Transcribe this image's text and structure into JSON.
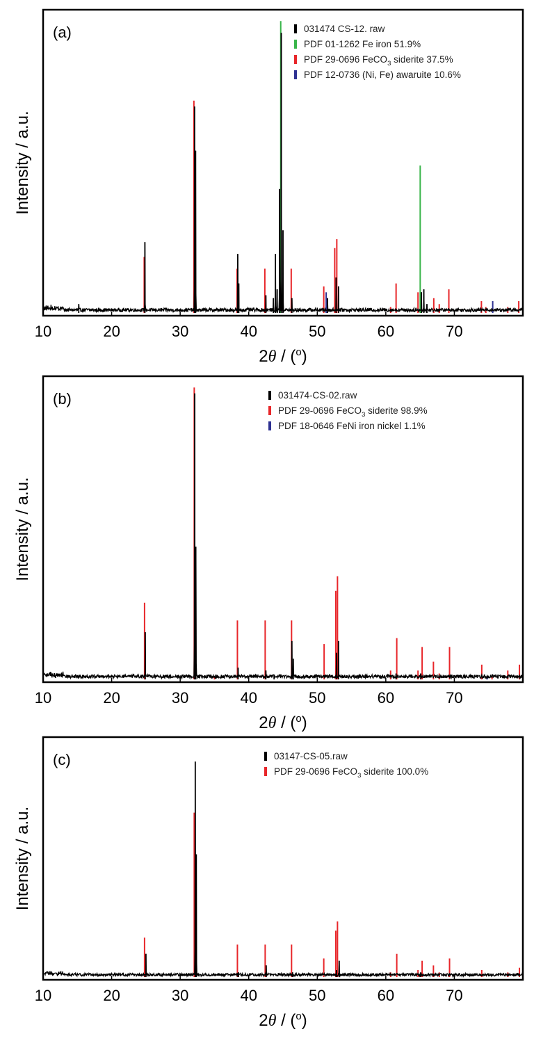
{
  "colors": {
    "raw": "#000000",
    "iron": "#39b54a",
    "siderite": "#e8262a",
    "nickel": "#2e3192"
  },
  "axis": {
    "xlabel_prefix": "2",
    "xlabel_theta": "θ",
    "xlabel_suffix": " / (",
    "xlabel_deg": "o",
    "xlabel_close": ")",
    "ylabel": "Intensity / a.u."
  },
  "chart_data": [
    {
      "type": "line",
      "panel_label": "(a)",
      "xlabel": "2θ / (o)",
      "ylabel": "Intensity / a.u.",
      "xlim": [
        10,
        80
      ],
      "ylim": [
        0,
        1
      ],
      "xticks": [
        10,
        20,
        30,
        40,
        50,
        60,
        70
      ],
      "legend_position": "top-right",
      "legend": [
        {
          "key": "raw",
          "parts": [
            "031474 CS-12. raw"
          ]
        },
        {
          "key": "iron",
          "parts": [
            "PDF 01-1262 Fe iron 51.9%"
          ]
        },
        {
          "key": "siderite",
          "parts": [
            "PDF 29-0696 FeCO",
            "3",
            " siderite 37.5%"
          ]
        },
        {
          "key": "nickel",
          "parts": [
            "PDF 12-0736 (Ni, Fe) awaruite 10.6%"
          ]
        }
      ],
      "peaks": [
        {
          "x": 15.2,
          "y": 0.03
        },
        {
          "x": 24.85,
          "y": 0.24
        },
        {
          "x": 32.1,
          "y": 0.7
        },
        {
          "x": 32.25,
          "y": 0.55
        },
        {
          "x": 38.4,
          "y": 0.2
        },
        {
          "x": 38.55,
          "y": 0.1
        },
        {
          "x": 42.5,
          "y": 0.06
        },
        {
          "x": 43.6,
          "y": 0.05
        },
        {
          "x": 43.9,
          "y": 0.2
        },
        {
          "x": 44.15,
          "y": 0.08
        },
        {
          "x": 44.5,
          "y": 0.42
        },
        {
          "x": 44.75,
          "y": 0.95
        },
        {
          "x": 45.0,
          "y": 0.28
        },
        {
          "x": 46.3,
          "y": 0.05
        },
        {
          "x": 51.5,
          "y": 0.05
        },
        {
          "x": 52.75,
          "y": 0.12
        },
        {
          "x": 53.1,
          "y": 0.09
        },
        {
          "x": 65.2,
          "y": 0.07
        },
        {
          "x": 65.55,
          "y": 0.08
        },
        {
          "x": 66.0,
          "y": 0.03
        }
      ],
      "refs": [
        {
          "series": "iron",
          "x": 44.67,
          "y": 0.99
        },
        {
          "series": "iron",
          "x": 65.02,
          "y": 0.5
        },
        {
          "series": "siderite",
          "x": 24.75,
          "y": 0.19
        },
        {
          "series": "siderite",
          "x": 32.0,
          "y": 0.72
        },
        {
          "series": "siderite",
          "x": 38.3,
          "y": 0.15
        },
        {
          "series": "siderite",
          "x": 42.35,
          "y": 0.15
        },
        {
          "series": "siderite",
          "x": 46.2,
          "y": 0.15
        },
        {
          "series": "siderite",
          "x": 50.95,
          "y": 0.09
        },
        {
          "series": "siderite",
          "x": 52.55,
          "y": 0.22
        },
        {
          "series": "siderite",
          "x": 52.85,
          "y": 0.25
        },
        {
          "series": "siderite",
          "x": 60.7,
          "y": 0.02
        },
        {
          "series": "siderite",
          "x": 61.5,
          "y": 0.1
        },
        {
          "series": "siderite",
          "x": 64.7,
          "y": 0.07
        },
        {
          "series": "siderite",
          "x": 67.0,
          "y": 0.05
        },
        {
          "series": "siderite",
          "x": 67.8,
          "y": 0.03
        },
        {
          "series": "siderite",
          "x": 69.2,
          "y": 0.08
        },
        {
          "series": "siderite",
          "x": 73.95,
          "y": 0.04
        },
        {
          "series": "siderite",
          "x": 74.6,
          "y": 0.02
        },
        {
          "series": "siderite",
          "x": 77.8,
          "y": 0.02
        },
        {
          "series": "siderite",
          "x": 79.4,
          "y": 0.04
        },
        {
          "series": "nickel",
          "x": 51.3,
          "y": 0.07
        },
        {
          "series": "nickel",
          "x": 75.6,
          "y": 0.04
        }
      ]
    },
    {
      "type": "line",
      "panel_label": "(b)",
      "xlabel": "2θ / (o)",
      "ylabel": "Intensity / a.u.",
      "xlim": [
        10,
        80
      ],
      "ylim": [
        0,
        1
      ],
      "xticks": [
        10,
        20,
        30,
        40,
        50,
        60,
        70
      ],
      "legend_position": "top-right",
      "legend": [
        {
          "key": "raw",
          "parts": [
            "031474-CS-02.raw"
          ]
        },
        {
          "key": "siderite",
          "parts": [
            "PDF 29-0696 FeCO",
            "3",
            " siderite 98.9%"
          ]
        },
        {
          "key": "nickel",
          "parts": [
            "PDF 18-0646 FeNi iron nickel 1.1%"
          ]
        }
      ],
      "peaks": [
        {
          "x": 24.9,
          "y": 0.16
        },
        {
          "x": 32.12,
          "y": 0.97
        },
        {
          "x": 32.28,
          "y": 0.45
        },
        {
          "x": 38.45,
          "y": 0.04
        },
        {
          "x": 42.5,
          "y": 0.03
        },
        {
          "x": 43.7,
          "y": 0.015
        },
        {
          "x": 46.3,
          "y": 0.13
        },
        {
          "x": 46.5,
          "y": 0.07
        },
        {
          "x": 52.8,
          "y": 0.09
        },
        {
          "x": 53.1,
          "y": 0.13
        },
        {
          "x": 61.5,
          "y": 0.02
        },
        {
          "x": 65.1,
          "y": 0.02
        }
      ],
      "refs": [
        {
          "series": "siderite",
          "x": 24.8,
          "y": 0.26
        },
        {
          "series": "siderite",
          "x": 32.05,
          "y": 0.99
        },
        {
          "series": "siderite",
          "x": 35.0,
          "y": 0.01
        },
        {
          "series": "siderite",
          "x": 38.35,
          "y": 0.2
        },
        {
          "series": "siderite",
          "x": 42.4,
          "y": 0.2
        },
        {
          "series": "siderite",
          "x": 46.25,
          "y": 0.2
        },
        {
          "series": "siderite",
          "x": 51.0,
          "y": 0.12
        },
        {
          "series": "siderite",
          "x": 52.7,
          "y": 0.3
        },
        {
          "series": "siderite",
          "x": 52.95,
          "y": 0.35
        },
        {
          "series": "siderite",
          "x": 60.7,
          "y": 0.03
        },
        {
          "series": "siderite",
          "x": 61.6,
          "y": 0.14
        },
        {
          "series": "siderite",
          "x": 64.7,
          "y": 0.03
        },
        {
          "series": "siderite",
          "x": 65.3,
          "y": 0.11
        },
        {
          "series": "siderite",
          "x": 66.95,
          "y": 0.06
        },
        {
          "series": "siderite",
          "x": 67.8,
          "y": 0.02
        },
        {
          "series": "siderite",
          "x": 69.3,
          "y": 0.11
        },
        {
          "series": "siderite",
          "x": 74.0,
          "y": 0.05
        },
        {
          "series": "siderite",
          "x": 75.5,
          "y": 0.01
        },
        {
          "series": "siderite",
          "x": 77.8,
          "y": 0.03
        },
        {
          "series": "siderite",
          "x": 79.5,
          "y": 0.05
        },
        {
          "series": "nickel",
          "x": 74.8,
          "y": 0.008
        }
      ]
    },
    {
      "type": "line",
      "panel_label": "(c)",
      "xlabel": "2θ / (o)",
      "ylabel": "Intensity / a.u.",
      "xlim": [
        10,
        80
      ],
      "ylim": [
        0,
        1
      ],
      "xticks": [
        10,
        20,
        30,
        40,
        50,
        60,
        70
      ],
      "legend_position": "top-right",
      "legend": [
        {
          "key": "raw",
          "parts": [
            "03147-CS-05.raw"
          ]
        },
        {
          "key": "siderite",
          "parts": [
            "PDF 29-0696 FeCO",
            "3",
            " siderite 100.0%"
          ]
        }
      ],
      "peaks": [
        {
          "x": 25.0,
          "y": 0.1
        },
        {
          "x": 32.2,
          "y": 0.93
        },
        {
          "x": 32.35,
          "y": 0.53
        },
        {
          "x": 38.5,
          "y": 0.02
        },
        {
          "x": 42.55,
          "y": 0.05
        },
        {
          "x": 46.4,
          "y": 0.02
        },
        {
          "x": 52.8,
          "y": 0.03
        },
        {
          "x": 53.2,
          "y": 0.07
        },
        {
          "x": 65.1,
          "y": 0.02
        }
      ],
      "refs": [
        {
          "series": "siderite",
          "x": 24.8,
          "y": 0.17
        },
        {
          "series": "siderite",
          "x": 32.05,
          "y": 0.71
        },
        {
          "series": "siderite",
          "x": 38.35,
          "y": 0.14
        },
        {
          "series": "siderite",
          "x": 42.4,
          "y": 0.14
        },
        {
          "series": "siderite",
          "x": 46.25,
          "y": 0.14
        },
        {
          "series": "siderite",
          "x": 50.95,
          "y": 0.08
        },
        {
          "series": "siderite",
          "x": 52.7,
          "y": 0.2
        },
        {
          "series": "siderite",
          "x": 52.95,
          "y": 0.24
        },
        {
          "series": "siderite",
          "x": 60.7,
          "y": 0.02
        },
        {
          "series": "siderite",
          "x": 61.6,
          "y": 0.1
        },
        {
          "series": "siderite",
          "x": 64.7,
          "y": 0.03
        },
        {
          "series": "siderite",
          "x": 65.3,
          "y": 0.07
        },
        {
          "series": "siderite",
          "x": 66.95,
          "y": 0.05
        },
        {
          "series": "siderite",
          "x": 67.8,
          "y": 0.02
        },
        {
          "series": "siderite",
          "x": 69.3,
          "y": 0.08
        },
        {
          "series": "siderite",
          "x": 74.0,
          "y": 0.03
        },
        {
          "series": "siderite",
          "x": 77.8,
          "y": 0.02
        },
        {
          "series": "siderite",
          "x": 79.5,
          "y": 0.04
        }
      ]
    }
  ]
}
